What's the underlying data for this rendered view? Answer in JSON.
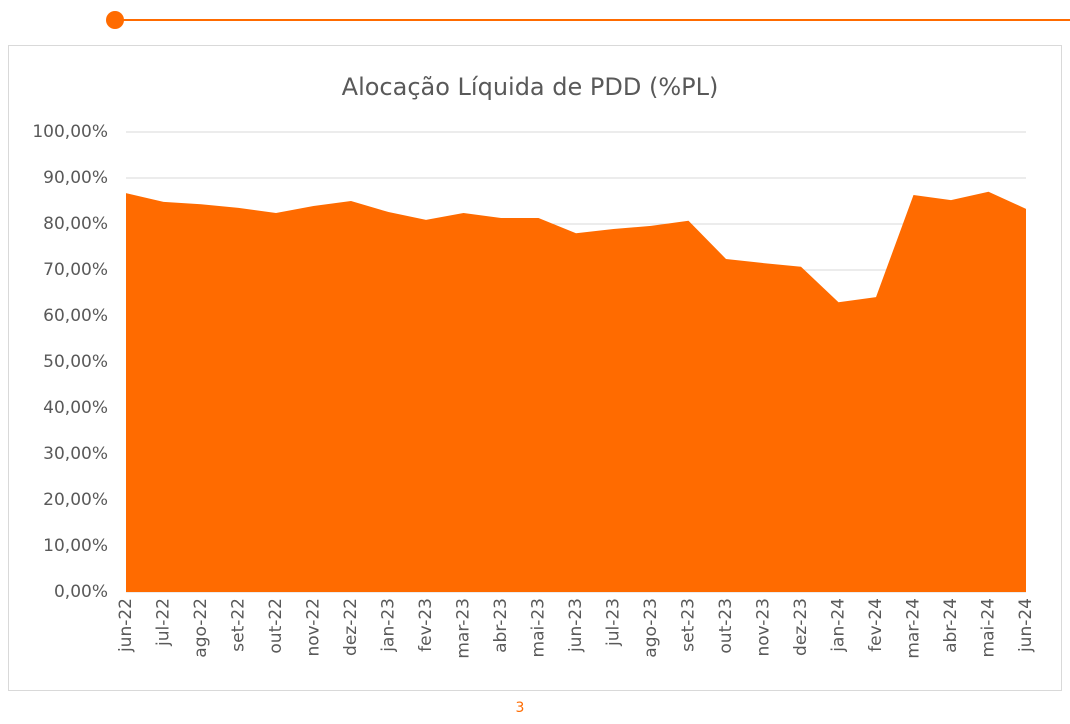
{
  "chart_data": {
    "type": "area",
    "title": "Alocação Líquida de PDD (%PL)",
    "categories": [
      "jun-22",
      "jul-22",
      "ago-22",
      "set-22",
      "out-22",
      "nov-22",
      "dez-22",
      "jan-23",
      "fev-23",
      "mar-23",
      "abr-23",
      "mai-23",
      "jun-23",
      "jul-23",
      "ago-23",
      "set-23",
      "out-23",
      "nov-23",
      "dez-23",
      "jan-24",
      "fev-24",
      "mar-24",
      "abr-24",
      "mai-24",
      "jun-24"
    ],
    "values": [
      86.7,
      84.8,
      84.3,
      83.5,
      82.4,
      83.9,
      85.0,
      82.6,
      80.9,
      82.4,
      81.3,
      81.3,
      78.0,
      78.9,
      79.6,
      80.7,
      72.4,
      71.5,
      70.7,
      63.0,
      64.1,
      86.3,
      85.2,
      87.0,
      83.3
    ],
    "color": "#ff6b00",
    "ylim": [
      0,
      100
    ],
    "yticks": [
      {
        "value": 0,
        "label": "0,00%"
      },
      {
        "value": 10,
        "label": "10,00%"
      },
      {
        "value": 20,
        "label": "20,00%"
      },
      {
        "value": 30,
        "label": "30,00%"
      },
      {
        "value": 40,
        "label": "40,00%"
      },
      {
        "value": 50,
        "label": "50,00%"
      },
      {
        "value": 60,
        "label": "60,00%"
      },
      {
        "value": 70,
        "label": "70,00%"
      },
      {
        "value": 80,
        "label": "80,00%"
      },
      {
        "value": 90,
        "label": "90,00%"
      },
      {
        "value": 100,
        "label": "100,00%"
      }
    ],
    "grid": true
  },
  "page_number": "3"
}
